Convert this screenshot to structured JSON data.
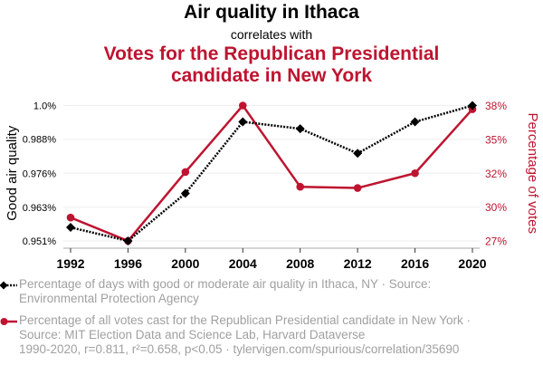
{
  "header": {
    "title": "Air quality in Ithaca",
    "subtitle": "correlates with",
    "title2": "Votes for the Republican Presidential candidate in New York"
  },
  "colors": {
    "series1": "#000000",
    "series2": "#be1430",
    "grid": "#eeeeee",
    "legend_text": "#a0a0a0"
  },
  "chart_data": {
    "type": "line",
    "title": "Air quality in Ithaca correlates with Votes for the Republican Presidential candidate in New York",
    "x": [
      1992,
      1996,
      2000,
      2004,
      2008,
      2012,
      2016,
      2020
    ],
    "xlabel": "",
    "x_tick_labels": [
      "1992",
      "1996",
      "2000",
      "2004",
      "2008",
      "2012",
      "2016",
      "2020"
    ],
    "grid": true,
    "legend_position": "bottom",
    "series": [
      {
        "name": "Percentage of days with good or moderate air quality in Ithaca, NY",
        "axis": "left",
        "style": "dotted-black-diamond",
        "values": [
          0.9559,
          0.951,
          0.9682,
          0.9941,
          0.9916,
          0.9827,
          0.9941,
          1.0
        ]
      },
      {
        "name": "Percentage of all votes cast for the Republican Presidential candidate in New York",
        "axis": "right",
        "style": "solid-red-circle",
        "values": [
          28.9,
          27.0,
          32.6,
          38.0,
          31.4,
          31.3,
          32.5,
          37.7
        ]
      }
    ],
    "y_left": {
      "label": "Good air quality",
      "range": [
        0.951,
        1.0
      ],
      "ticks": [
        1.0,
        0.9878,
        0.9755,
        0.9632,
        0.951
      ],
      "tick_labels": [
        "1.0%",
        "0.988%",
        "0.976%",
        "0.963%",
        "0.951%"
      ]
    },
    "y_right": {
      "label": "Percentage of votes",
      "range": [
        27.0,
        38.0
      ],
      "ticks": [
        38.0,
        35.25,
        32.5,
        29.75,
        27.0
      ],
      "tick_labels": [
        "38%",
        "35%",
        "32%",
        "30%",
        "27%"
      ]
    }
  },
  "legend": {
    "items": [
      {
        "text": "Percentage of days with good or moderate air quality in Ithaca, NY · Source: Environmental Protection Agency"
      },
      {
        "text": "Percentage of all votes cast for the Republican Presidential candidate in New York · Source: MIT Election Data and Science Lab, Harvard Dataverse"
      }
    ]
  },
  "footer": {
    "text": "1990-2020, r=0.811, r²=0.658, p<0.05 · tylervigen.com/spurious/correlation/35690"
  }
}
